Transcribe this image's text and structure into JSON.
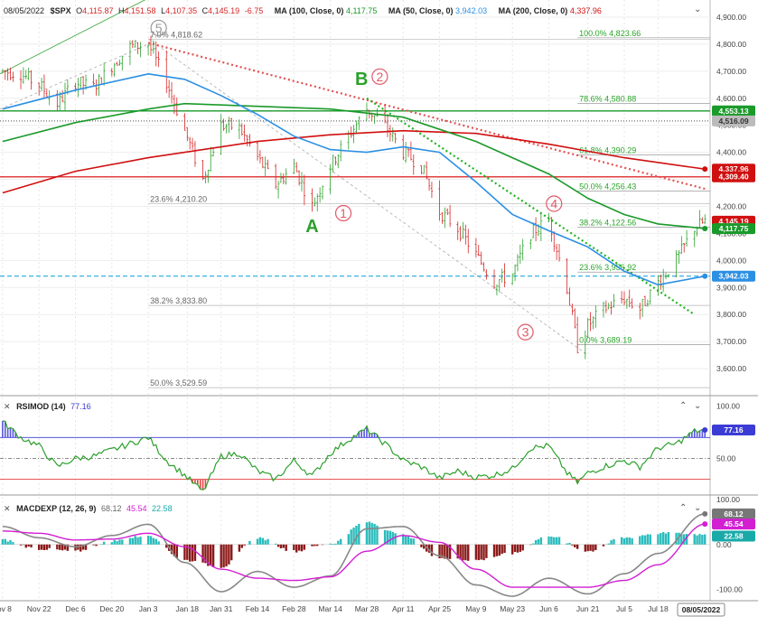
{
  "header": {
    "date": "08/05/2022",
    "symbol": "$SPX",
    "open_label": "O",
    "open": "4,115.87",
    "high_label": "H",
    "high": "4,151.58",
    "low_label": "L",
    "low": "4,107.35",
    "close_label": "C",
    "close": "4,145.19",
    "change": "-6.75",
    "ma100_label": "MA (100, Close, 0)",
    "ma100_value": "4,117.75",
    "ma50_label": "MA (50, Close, 0)",
    "ma50_value": "3,942.03",
    "ma200_label": "MA (200, Close, 0)",
    "ma200_value": "4,337.96"
  },
  "rsi_header": {
    "label": "RSIMOD (14)",
    "value": "77.16"
  },
  "macd_header": {
    "label": "MACDEXP (12, 26, 9)",
    "v1": "68.12",
    "v2": "45.54",
    "v3": "22.58"
  },
  "x_axis": {
    "labels": [
      "ov 8",
      "Nov 22",
      "Dec 6",
      "Dec 20",
      "Jan 3",
      "Jan 18",
      "Jan 31",
      "Feb 14",
      "Feb 28",
      "Mar 14",
      "Mar 28",
      "Apr 11",
      "Apr 25",
      "May 9",
      "May 23",
      "Jun 6",
      "Jun 21",
      "Jul 5",
      "Jul 18",
      "08/05/2022"
    ]
  },
  "colors": {
    "price_up": "#2ca02c",
    "price_down": "#d62728",
    "ma100": "#1a9a2a",
    "ma50": "#2b8fe3",
    "ma200": "#d01010",
    "fib_text": "#2aa52a",
    "fib_text_gray": "#666666",
    "rsi_line": "#2ca02c",
    "rsi_over": "#3b3bd6",
    "rsi_under": "#e02020",
    "macd_fast": "#888888",
    "macd_slow": "#d21fd2",
    "hist_pos": "#2bbcbc",
    "hist_neg": "#8b1a1a"
  },
  "chart_data": [
    {
      "type": "candlestick",
      "panel": "price",
      "y_ticks": [
        3600,
        3700,
        3800,
        3900,
        4000,
        4100,
        4200,
        4300,
        4400,
        4500,
        4600,
        4700,
        4800,
        4900
      ],
      "y_tick_labels": [
        "3,600.00",
        "3,700.00",
        "3,800.00",
        "3,900.00",
        "4,000.00",
        "4,100.00",
        "4,200.00",
        "4,300.00",
        "4,400.00",
        "4,500.00",
        "4,600.00",
        "4,700.00",
        "4,800.00",
        "4,900.00"
      ],
      "ylim": [
        3500,
        4950
      ],
      "price_path": [
        [
          "2021-11-08",
          4700
        ],
        [
          "2021-11-15",
          4690
        ],
        [
          "2021-11-22",
          4650
        ],
        [
          "2021-11-29",
          4580
        ],
        [
          "2021-12-06",
          4660
        ],
        [
          "2021-12-13",
          4640
        ],
        [
          "2021-12-20",
          4720
        ],
        [
          "2021-12-27",
          4790
        ],
        [
          "2022-01-03",
          4800
        ],
        [
          "2022-01-10",
          4660
        ],
        [
          "2022-01-17",
          4480
        ],
        [
          "2022-01-24",
          4300
        ],
        [
          "2022-01-31",
          4500
        ],
        [
          "2022-02-07",
          4490
        ],
        [
          "2022-02-14",
          4380
        ],
        [
          "2022-02-21",
          4280
        ],
        [
          "2022-02-28",
          4350
        ],
        [
          "2022-03-07",
          4200
        ],
        [
          "2022-03-14",
          4350
        ],
        [
          "2022-03-21",
          4460
        ],
        [
          "2022-03-28",
          4560
        ],
        [
          "2022-04-04",
          4500
        ],
        [
          "2022-04-11",
          4400
        ],
        [
          "2022-04-18",
          4350
        ],
        [
          "2022-04-25",
          4180
        ],
        [
          "2022-05-02",
          4120
        ],
        [
          "2022-05-09",
          4020
        ],
        [
          "2022-05-16",
          3920
        ],
        [
          "2022-05-23",
          3950
        ],
        [
          "2022-05-30",
          4100
        ],
        [
          "2022-06-06",
          4150
        ],
        [
          "2022-06-13",
          3900
        ],
        [
          "2022-06-17",
          3680
        ],
        [
          "2022-06-21",
          3760
        ],
        [
          "2022-06-27",
          3820
        ],
        [
          "2022-07-05",
          3860
        ],
        [
          "2022-07-11",
          3820
        ],
        [
          "2022-07-18",
          3920
        ],
        [
          "2022-07-25",
          4000
        ],
        [
          "2022-08-01",
          4120
        ],
        [
          "2022-08-05",
          4145
        ]
      ],
      "ma50": [
        [
          "2021-11-08",
          4560
        ],
        [
          "2021-12-06",
          4630
        ],
        [
          "2022-01-03",
          4690
        ],
        [
          "2022-01-17",
          4670
        ],
        [
          "2022-01-31",
          4610
        ],
        [
          "2022-02-14",
          4540
        ],
        [
          "2022-02-28",
          4460
        ],
        [
          "2022-03-14",
          4410
        ],
        [
          "2022-03-28",
          4400
        ],
        [
          "2022-04-11",
          4420
        ],
        [
          "2022-04-25",
          4400
        ],
        [
          "2022-05-09",
          4290
        ],
        [
          "2022-05-23",
          4170
        ],
        [
          "2022-06-06",
          4110
        ],
        [
          "2022-06-21",
          4050
        ],
        [
          "2022-07-05",
          3960
        ],
        [
          "2022-07-18",
          3910
        ],
        [
          "2022-08-05",
          3942
        ]
      ],
      "ma100": [
        [
          "2021-11-08",
          4440
        ],
        [
          "2021-12-06",
          4510
        ],
        [
          "2022-01-03",
          4560
        ],
        [
          "2022-01-17",
          4580
        ],
        [
          "2022-02-14",
          4570
        ],
        [
          "2022-03-14",
          4560
        ],
        [
          "2022-04-11",
          4530
        ],
        [
          "2022-05-09",
          4440
        ],
        [
          "2022-06-06",
          4320
        ],
        [
          "2022-06-21",
          4230
        ],
        [
          "2022-07-05",
          4170
        ],
        [
          "2022-07-18",
          4135
        ],
        [
          "2022-08-05",
          4118
        ]
      ],
      "ma200": [
        [
          "2021-11-08",
          4250
        ],
        [
          "2021-12-06",
          4330
        ],
        [
          "2022-01-03",
          4380
        ],
        [
          "2022-02-14",
          4440
        ],
        [
          "2022-03-14",
          4465
        ],
        [
          "2022-04-11",
          4480
        ],
        [
          "2022-05-09",
          4470
        ],
        [
          "2022-06-06",
          4430
        ],
        [
          "2022-07-05",
          4380
        ],
        [
          "2022-08-05",
          4338
        ]
      ],
      "fib_levels": [
        {
          "label": "100.0% 4,823.66",
          "value": 4823.66
        },
        {
          "label": "78.6% 4,580.88",
          "value": 4580.88
        },
        {
          "label": "61.8% 4,390.29",
          "value": 4390.29
        },
        {
          "label": "50.0% 4,256.43",
          "value": 4256.43
        },
        {
          "label": "38.2% 4,122.56",
          "value": 4122.56
        },
        {
          "label": "23.6% 3,956.92",
          "value": 3956.92
        },
        {
          "label": "0.0% 3,689.19",
          "value": 3689.19
        }
      ],
      "fib_levels_gray": [
        {
          "label": "7.0% 4,818.62",
          "value": 4818.62
        },
        {
          "label": "23.6% 4,210.20",
          "value": 4210.2
        },
        {
          "label": "38.2% 3,833.80",
          "value": 3833.8
        },
        {
          "label": "50.0% 3,529.59",
          "value": 3529.59
        }
      ],
      "horizontal_lines": [
        {
          "value": 4553.13,
          "label": "4,553.13",
          "color": "#1a9a2a"
        },
        {
          "value": 4516.09,
          "label": "4,516.09",
          "color": "#888888",
          "dotted": true
        },
        {
          "value": 4309.4,
          "label": "4,309.40",
          "color": "#e04040"
        },
        {
          "value": 3942.03,
          "label": "3,942.03",
          "color": "#22aadd",
          "dashed": true
        }
      ],
      "right_tags": [
        {
          "value": 4553.13,
          "label": "4,553.13",
          "color": "#1a9a2a"
        },
        {
          "value": 4516.09,
          "label": "4,516.09",
          "color": "#bbbbbb",
          "text_color": "#333333"
        },
        {
          "value": 4337.96,
          "label": "4,337.96",
          "color": "#d01010"
        },
        {
          "value": 4309.4,
          "label": "4,309.40",
          "color": "#d01010"
        },
        {
          "value": 4145.19,
          "label": "4,145.19",
          "color": "#d01010"
        },
        {
          "value": 4117.75,
          "label": "4,117.75",
          "color": "#1a9a2a"
        },
        {
          "value": 3942.03,
          "label": "3,942.03",
          "color": "#2b8fe3"
        }
      ],
      "annotations": [
        "5",
        "2",
        "B",
        "1",
        "A",
        "4",
        "3"
      ]
    },
    {
      "type": "line",
      "panel": "rsi",
      "name": "RSIMOD (14)",
      "y_ticks": [
        50,
        100
      ],
      "y_tick_labels": [
        "50.00",
        "100.00"
      ],
      "overbought": 70,
      "oversold": 30,
      "midline": 50,
      "ylim": [
        15,
        110
      ],
      "last_value": 77.16,
      "values": [
        [
          "2021-11-08",
          85
        ],
        [
          "2021-11-15",
          70
        ],
        [
          "2021-11-22",
          62
        ],
        [
          "2021-11-29",
          42
        ],
        [
          "2021-12-06",
          50
        ],
        [
          "2021-12-13",
          52
        ],
        [
          "2021-12-20",
          58
        ],
        [
          "2021-12-27",
          64
        ],
        [
          "2022-01-03",
          70
        ],
        [
          "2022-01-10",
          48
        ],
        [
          "2022-01-17",
          34
        ],
        [
          "2022-01-24",
          18
        ],
        [
          "2022-01-31",
          52
        ],
        [
          "2022-02-07",
          55
        ],
        [
          "2022-02-14",
          38
        ],
        [
          "2022-02-21",
          30
        ],
        [
          "2022-02-28",
          48
        ],
        [
          "2022-03-07",
          33
        ],
        [
          "2022-03-14",
          55
        ],
        [
          "2022-03-21",
          68
        ],
        [
          "2022-03-28",
          78
        ],
        [
          "2022-04-04",
          64
        ],
        [
          "2022-04-11",
          48
        ],
        [
          "2022-04-18",
          42
        ],
        [
          "2022-04-25",
          31
        ],
        [
          "2022-05-02",
          38
        ],
        [
          "2022-05-09",
          32
        ],
        [
          "2022-05-16",
          34
        ],
        [
          "2022-05-23",
          40
        ],
        [
          "2022-05-30",
          60
        ],
        [
          "2022-06-06",
          62
        ],
        [
          "2022-06-13",
          36
        ],
        [
          "2022-06-17",
          27
        ],
        [
          "2022-06-21",
          36
        ],
        [
          "2022-06-27",
          42
        ],
        [
          "2022-07-05",
          48
        ],
        [
          "2022-07-11",
          42
        ],
        [
          "2022-07-18",
          60
        ],
        [
          "2022-07-25",
          64
        ],
        [
          "2022-08-01",
          76
        ],
        [
          "2022-08-05",
          77.16
        ]
      ]
    },
    {
      "type": "bar+line",
      "panel": "macd",
      "name": "MACDEXP (12, 26, 9)",
      "y_ticks": [
        -100,
        0,
        100
      ],
      "y_tick_labels": [
        "-100.00",
        "0.00",
        "100.00"
      ],
      "ylim": [
        -125,
        110
      ],
      "last_values": {
        "macd": 68.12,
        "signal": 45.54,
        "histogram": 22.58
      },
      "macd": [
        [
          "2021-11-08",
          40
        ],
        [
          "2021-11-22",
          15
        ],
        [
          "2021-12-06",
          -5
        ],
        [
          "2021-12-20",
          20
        ],
        [
          "2022-01-03",
          45
        ],
        [
          "2022-01-17",
          -40
        ],
        [
          "2022-01-31",
          -105
        ],
        [
          "2022-02-14",
          -60
        ],
        [
          "2022-02-28",
          -95
        ],
        [
          "2022-03-14",
          -70
        ],
        [
          "2022-03-28",
          35
        ],
        [
          "2022-04-11",
          40
        ],
        [
          "2022-04-25",
          -25
        ],
        [
          "2022-05-09",
          -90
        ],
        [
          "2022-05-23",
          -115
        ],
        [
          "2022-06-06",
          -75
        ],
        [
          "2022-06-21",
          -110
        ],
        [
          "2022-07-05",
          -65
        ],
        [
          "2022-07-18",
          -20
        ],
        [
          "2022-08-05",
          68.12
        ]
      ],
      "signal": [
        [
          "2021-11-08",
          30
        ],
        [
          "2021-11-22",
          25
        ],
        [
          "2021-12-06",
          10
        ],
        [
          "2021-12-20",
          12
        ],
        [
          "2022-01-03",
          25
        ],
        [
          "2022-01-17",
          -5
        ],
        [
          "2022-01-31",
          -55
        ],
        [
          "2022-02-14",
          -75
        ],
        [
          "2022-02-28",
          -80
        ],
        [
          "2022-03-14",
          -72
        ],
        [
          "2022-03-28",
          -15
        ],
        [
          "2022-04-11",
          20
        ],
        [
          "2022-04-25",
          5
        ],
        [
          "2022-05-09",
          -55
        ],
        [
          "2022-05-23",
          -95
        ],
        [
          "2022-06-06",
          -95
        ],
        [
          "2022-06-21",
          -95
        ],
        [
          "2022-07-05",
          -80
        ],
        [
          "2022-07-18",
          -45
        ],
        [
          "2022-08-05",
          45.54
        ]
      ],
      "histogram": [
        [
          "2021-11-08",
          10
        ],
        [
          "2021-11-22",
          -10
        ],
        [
          "2021-12-06",
          -15
        ],
        [
          "2021-12-20",
          8
        ],
        [
          "2022-01-03",
          20
        ],
        [
          "2022-01-17",
          -35
        ],
        [
          "2022-01-31",
          -50
        ],
        [
          "2022-02-14",
          15
        ],
        [
          "2022-02-28",
          -15
        ],
        [
          "2022-03-14",
          2
        ],
        [
          "2022-03-28",
          50
        ],
        [
          "2022-04-11",
          20
        ],
        [
          "2022-04-25",
          -30
        ],
        [
          "2022-05-09",
          -35
        ],
        [
          "2022-05-23",
          -20
        ],
        [
          "2022-06-06",
          20
        ],
        [
          "2022-06-21",
          -15
        ],
        [
          "2022-07-05",
          15
        ],
        [
          "2022-07-18",
          25
        ],
        [
          "2022-08-05",
          22.58
        ]
      ]
    }
  ]
}
